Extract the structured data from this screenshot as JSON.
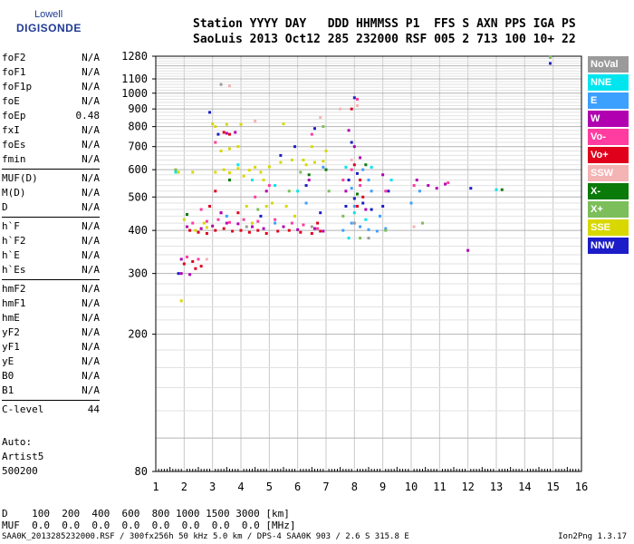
{
  "logo": {
    "line1": "Lowell",
    "line2": "DIGISONDE"
  },
  "header": {
    "row1": "Station YYYY DAY   DDD HHMMSS P1  FFS S AXN PPS IGA PS",
    "row2": "SaoLuis 2013 Oct12 285 232000 RSF 005 2 713 100 10+ 22"
  },
  "params": [
    [
      {
        "k": "foF2",
        "v": "N/A"
      },
      {
        "k": "foF1",
        "v": "N/A"
      },
      {
        "k": "foF1p",
        "v": "N/A"
      },
      {
        "k": "foE",
        "v": "N/A"
      },
      {
        "k": "foEp",
        "v": "0.48"
      },
      {
        "k": "fxI",
        "v": "N/A"
      },
      {
        "k": "foEs",
        "v": "N/A"
      },
      {
        "k": "fmin",
        "v": "N/A"
      }
    ],
    [
      {
        "k": "MUF(D)",
        "v": "N/A"
      },
      {
        "k": "M(D)",
        "v": "N/A"
      },
      {
        "k": "D",
        "v": "N/A"
      }
    ],
    [
      {
        "k": "h`F",
        "v": "N/A"
      },
      {
        "k": "h`F2",
        "v": "N/A"
      },
      {
        "k": "h`E",
        "v": "N/A"
      },
      {
        "k": "h`Es",
        "v": "N/A"
      }
    ],
    [
      {
        "k": "hmF2",
        "v": "N/A"
      },
      {
        "k": "hmF1",
        "v": "N/A"
      },
      {
        "k": "hmE",
        "v": "N/A"
      },
      {
        "k": "yF2",
        "v": "N/A"
      },
      {
        "k": "yF1",
        "v": "N/A"
      },
      {
        "k": "yE",
        "v": "N/A"
      },
      {
        "k": "B0",
        "v": "N/A"
      },
      {
        "k": "B1",
        "v": "N/A"
      }
    ],
    [
      {
        "k": "C-level",
        "v": "44"
      }
    ]
  ],
  "auto": [
    "Auto:",
    "Artist5",
    "500200"
  ],
  "legend": [
    {
      "label": "NoVal",
      "color": "#9a9a9a"
    },
    {
      "label": "NNE",
      "color": "#00e5ee"
    },
    {
      "label": "E",
      "color": "#3ca0ff"
    },
    {
      "label": "W",
      "color": "#b000b0"
    },
    {
      "label": "Vo-",
      "color": "#ff3ca0"
    },
    {
      "label": "Vo+",
      "color": "#e0001c"
    },
    {
      "label": "SSW",
      "color": "#f4b4b4"
    },
    {
      "label": "X-",
      "color": "#0a7a0a"
    },
    {
      "label": "X+",
      "color": "#7cbe5a"
    },
    {
      "label": "SSE",
      "color": "#d8d800"
    },
    {
      "label": "NNW",
      "color": "#1c1cc8"
    }
  ],
  "footer": {
    "d_row": "D    100  200  400  600  800 1000 1500 3000 [km]",
    "muf_row": "MUF  0.0  0.0  0.0  0.0  0.0  0.0  0.0  0.0 [MHz]",
    "file": "SAA0K_2013285232000.RSF / 300fx256h 50 kHz 5.0 km / DPS-4 SAA0K 903 / 2.6 S 315.8 E",
    "version": "Ion2Png 1.3.17"
  },
  "chart_data": {
    "type": "scatter",
    "xlim": [
      1,
      16
    ],
    "ylim": [
      80,
      1280
    ],
    "y_scale": "log",
    "xticks": [
      1,
      2,
      3,
      4,
      5,
      6,
      7,
      8,
      9,
      10,
      11,
      12,
      13,
      14,
      15,
      16
    ],
    "yticks": [
      80,
      200,
      300,
      400,
      500,
      600,
      700,
      800,
      900,
      1000,
      1100,
      1280
    ],
    "grid": true,
    "series": [
      {
        "name": "SSE",
        "points": [
          [
            2.4,
            400
          ],
          [
            2.8,
            408
          ],
          [
            3.1,
            590
          ],
          [
            3.4,
            600
          ],
          [
            3.6,
            588
          ],
          [
            3.9,
            605
          ],
          [
            4.1,
            575
          ],
          [
            4.3,
            598
          ],
          [
            4.5,
            610
          ],
          [
            4.7,
            590
          ],
          [
            3.0,
            815
          ],
          [
            3.5,
            812
          ],
          [
            4.0,
            812
          ],
          [
            3.3,
            680
          ],
          [
            3.6,
            690
          ],
          [
            3.9,
            700
          ],
          [
            5.0,
            612
          ],
          [
            5.4,
            630
          ],
          [
            5.8,
            640
          ],
          [
            6.3,
            620
          ],
          [
            6.6,
            630
          ],
          [
            6.9,
            635
          ],
          [
            6.5,
            700
          ],
          [
            7.0,
            680
          ],
          [
            2.3,
            590
          ],
          [
            1.8,
            590
          ],
          [
            2.0,
            430
          ],
          [
            4.9,
            470
          ],
          [
            5.1,
            480
          ],
          [
            5.6,
            470
          ],
          [
            5.9,
            440
          ],
          [
            6.2,
            640
          ],
          [
            2.7,
            420
          ],
          [
            4.4,
            420
          ],
          [
            1.9,
            250
          ],
          [
            5.5,
            815
          ],
          [
            4.8,
            560
          ],
          [
            4.2,
            470
          ],
          [
            3.1,
            800
          ]
        ]
      },
      {
        "name": "Vo+",
        "points": [
          [
            2.2,
            400
          ],
          [
            2.5,
            395
          ],
          [
            2.8,
            392
          ],
          [
            3.1,
            400
          ],
          [
            3.4,
            405
          ],
          [
            3.7,
            398
          ],
          [
            4.0,
            400
          ],
          [
            4.3,
            395
          ],
          [
            4.6,
            400
          ],
          [
            4.9,
            392
          ],
          [
            5.3,
            398
          ],
          [
            5.7,
            400
          ],
          [
            6.1,
            395
          ],
          [
            6.5,
            392
          ],
          [
            6.8,
            398
          ],
          [
            2.0,
            320
          ],
          [
            2.3,
            325
          ],
          [
            2.6,
            315
          ],
          [
            3.4,
            770
          ],
          [
            3.6,
            760
          ],
          [
            7.9,
            900
          ],
          [
            8.1,
            470
          ],
          [
            8.3,
            500
          ],
          [
            8.0,
            620
          ],
          [
            8.2,
            560
          ],
          [
            3.1,
            520
          ],
          [
            3.3,
            450
          ],
          [
            3.9,
            450
          ],
          [
            2.9,
            470
          ],
          [
            6.7,
            420
          ],
          [
            2.4,
            310
          ]
        ]
      },
      {
        "name": "W",
        "points": [
          [
            2.1,
            410
          ],
          [
            2.6,
            405
          ],
          [
            3.0,
            412
          ],
          [
            3.5,
            420
          ],
          [
            3.9,
            418
          ],
          [
            4.4,
            410
          ],
          [
            4.8,
            405
          ],
          [
            5.5,
            410
          ],
          [
            6.0,
            402
          ],
          [
            6.6,
            405
          ],
          [
            6.9,
            398
          ],
          [
            3.5,
            765
          ],
          [
            3.8,
            770
          ],
          [
            1.9,
            300
          ],
          [
            2.2,
            298
          ],
          [
            7.8,
            780
          ],
          [
            8.0,
            700
          ],
          [
            8.2,
            650
          ],
          [
            9.0,
            580
          ],
          [
            10.2,
            560
          ],
          [
            10.6,
            540
          ],
          [
            10.9,
            530
          ],
          [
            11.2,
            545
          ],
          [
            12.0,
            350
          ],
          [
            6.4,
            560
          ],
          [
            3.3,
            450
          ],
          [
            4.9,
            520
          ],
          [
            7.7,
            520
          ],
          [
            8.4,
            460
          ],
          [
            1.9,
            330
          ]
        ]
      },
      {
        "name": "Vo-",
        "points": [
          [
            2.3,
            420
          ],
          [
            2.8,
            425
          ],
          [
            3.2,
            430
          ],
          [
            3.6,
            422
          ],
          [
            4.1,
            430
          ],
          [
            4.6,
            425
          ],
          [
            5.2,
            430
          ],
          [
            5.8,
            420
          ],
          [
            6.2,
            415
          ],
          [
            6.7,
            405
          ],
          [
            2.1,
            335
          ],
          [
            2.5,
            330
          ],
          [
            7.6,
            560
          ],
          [
            7.9,
            600
          ],
          [
            8.2,
            540
          ],
          [
            8.1,
            960
          ],
          [
            9.1,
            520
          ],
          [
            10.1,
            540
          ],
          [
            11.3,
            550
          ],
          [
            3.1,
            720
          ],
          [
            5.0,
            540
          ],
          [
            6.5,
            760
          ],
          [
            2.6,
            460
          ],
          [
            4.5,
            500
          ]
        ]
      },
      {
        "name": "E",
        "points": [
          [
            7.6,
            400
          ],
          [
            7.9,
            420
          ],
          [
            8.2,
            410
          ],
          [
            8.5,
            402
          ],
          [
            8.8,
            398
          ],
          [
            9.1,
            405
          ],
          [
            8.3,
            600
          ],
          [
            8.6,
            520
          ],
          [
            8.0,
            470
          ],
          [
            7.9,
            530
          ],
          [
            8.5,
            560
          ],
          [
            6.9,
            610
          ],
          [
            6.3,
            480
          ],
          [
            10.0,
            480
          ],
          [
            10.3,
            520
          ],
          [
            3.5,
            440
          ],
          [
            5.2,
            420
          ],
          [
            8.9,
            440
          ]
        ]
      },
      {
        "name": "NNW",
        "points": [
          [
            7.7,
            470
          ],
          [
            8.0,
            495
          ],
          [
            8.3,
            480
          ],
          [
            8.6,
            460
          ],
          [
            7.8,
            560
          ],
          [
            8.1,
            585
          ],
          [
            9.0,
            470
          ],
          [
            9.2,
            520
          ],
          [
            6.8,
            450
          ],
          [
            6.3,
            540
          ],
          [
            5.4,
            660
          ],
          [
            5.9,
            700
          ],
          [
            6.6,
            790
          ],
          [
            3.2,
            760
          ],
          [
            2.9,
            880
          ],
          [
            1.8,
            300
          ],
          [
            8.0,
            970
          ],
          [
            14.9,
            1220
          ],
          [
            12.1,
            530
          ],
          [
            7.9,
            720
          ],
          [
            4.7,
            440
          ]
        ]
      },
      {
        "name": "NNE",
        "points": [
          [
            8.0,
            450
          ],
          [
            8.4,
            430
          ],
          [
            7.8,
            380
          ],
          [
            7.7,
            610
          ],
          [
            8.6,
            610
          ],
          [
            5.2,
            540
          ],
          [
            4.4,
            560
          ],
          [
            3.9,
            620
          ],
          [
            1.7,
            590
          ],
          [
            13.0,
            525
          ],
          [
            9.3,
            560
          ],
          [
            6.0,
            520
          ]
        ]
      },
      {
        "name": "X+",
        "points": [
          [
            8.2,
            380
          ],
          [
            7.6,
            440
          ],
          [
            6.1,
            590
          ],
          [
            5.7,
            520
          ],
          [
            4.6,
            460
          ],
          [
            9.1,
            400
          ],
          [
            10.4,
            420
          ],
          [
            14.9,
            1270
          ],
          [
            1.7,
            600
          ],
          [
            6.9,
            800
          ],
          [
            7.1,
            520
          ]
        ]
      },
      {
        "name": "X-",
        "points": [
          [
            8.1,
            510
          ],
          [
            6.4,
            580
          ],
          [
            3.6,
            560
          ],
          [
            8.4,
            620
          ],
          [
            13.2,
            525
          ],
          [
            2.1,
            445
          ],
          [
            7.0,
            600
          ]
        ]
      },
      {
        "name": "SSW",
        "points": [
          [
            6.8,
            850
          ],
          [
            7.5,
            900
          ],
          [
            8.1,
            920
          ],
          [
            4.5,
            830
          ],
          [
            10.1,
            410
          ],
          [
            2.8,
            330
          ],
          [
            3.6,
            1050
          ],
          [
            7.9,
            640
          ]
        ]
      },
      {
        "name": "NoVal",
        "points": [
          [
            8.0,
            420
          ],
          [
            6.5,
            410
          ],
          [
            4.2,
            410
          ],
          [
            3.3,
            1060
          ],
          [
            8.5,
            380
          ]
        ]
      }
    ]
  }
}
